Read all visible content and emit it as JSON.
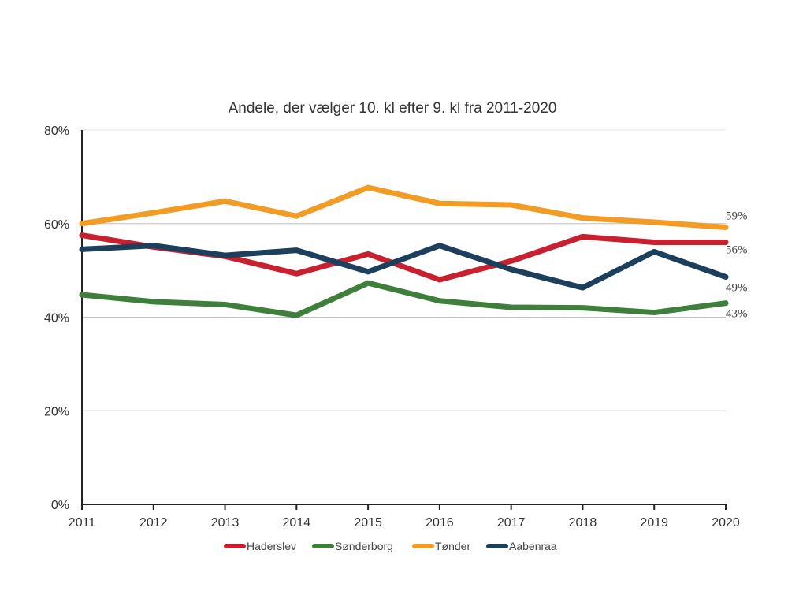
{
  "chart_data": {
    "type": "line",
    "title": "Andele, der vælger 10. kl efter 9. kl fra 2011-2020",
    "x": [
      "2011",
      "2012",
      "2013",
      "2014",
      "2015",
      "2016",
      "2017",
      "2018",
      "2019",
      "2020"
    ],
    "y_ticks": [
      "0%",
      "20%",
      "40%",
      "60%",
      "80%"
    ],
    "ylim": [
      0,
      80
    ],
    "grid": true,
    "legend_position": "bottom",
    "series": [
      {
        "name": "Haderslev",
        "color": "#c8202f",
        "values": [
          57.5,
          55,
          53,
          49.3,
          53.5,
          48,
          52,
          57.2,
          56,
          56
        ],
        "end_label": "56%"
      },
      {
        "name": "Sønderborg",
        "color": "#3f7f3c",
        "values": [
          44.8,
          43.3,
          42.7,
          40.4,
          47.3,
          43.5,
          42.1,
          42,
          41,
          43
        ],
        "end_label": "43%"
      },
      {
        "name": "Tønder",
        "color": "#f29c26",
        "values": [
          60,
          62.3,
          64.8,
          61.6,
          67.7,
          64.3,
          64,
          61.2,
          60.3,
          59.2
        ],
        "end_label": "59%"
      },
      {
        "name": "Aabenraa",
        "color": "#1b3f5c",
        "values": [
          54.5,
          55.3,
          53.2,
          54.3,
          49.7,
          55.3,
          50.2,
          46.3,
          54,
          48.6
        ],
        "end_label": "49%"
      }
    ]
  }
}
